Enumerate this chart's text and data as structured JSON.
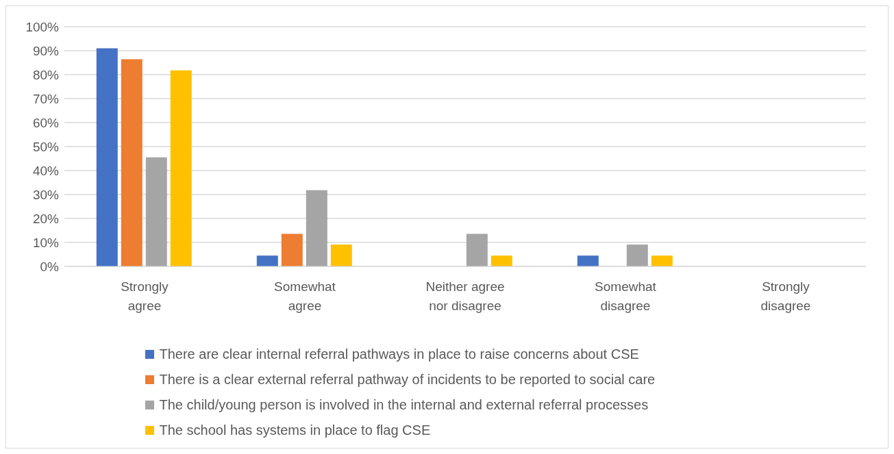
{
  "chart_data": {
    "type": "bar",
    "categories": [
      "Strongly agree",
      "Somewhat agree",
      "Neither agree nor disagree",
      "Somewhat disagree",
      "Strongly disagree"
    ],
    "series": [
      {
        "name": "There are clear internal referral pathways in place to raise concerns about CSE",
        "color": "#4472c4",
        "values": [
          91,
          4.5,
          0,
          4.5,
          0
        ]
      },
      {
        "name": "There is a clear external referral pathway of incidents to be reported to social care",
        "color": "#ed7d31",
        "values": [
          86.4,
          13.6,
          0,
          0,
          0
        ]
      },
      {
        "name": "The child/young person is involved in the internal and external referral processes",
        "color": "#a5a5a5",
        "values": [
          45.5,
          31.8,
          13.6,
          9.1,
          0
        ]
      },
      {
        "name": "The school has systems in place to flag CSE",
        "color": "#ffc000",
        "values": [
          81.8,
          9.1,
          4.5,
          4.5,
          0
        ]
      }
    ],
    "ylim": [
      0,
      100
    ],
    "yticks": [
      {
        "value": 0,
        "label": "0%"
      },
      {
        "value": 10,
        "label": "10%"
      },
      {
        "value": 20,
        "label": "20%"
      },
      {
        "value": 30,
        "label": "30%"
      },
      {
        "value": 40,
        "label": "40%"
      },
      {
        "value": 50,
        "label": "50%"
      },
      {
        "value": 60,
        "label": "60%"
      },
      {
        "value": 70,
        "label": "70%"
      },
      {
        "value": 80,
        "label": "80%"
      },
      {
        "value": 90,
        "label": "90%"
      },
      {
        "value": 100,
        "label": "100%"
      }
    ],
    "grid": "y",
    "legend": "bottom"
  }
}
